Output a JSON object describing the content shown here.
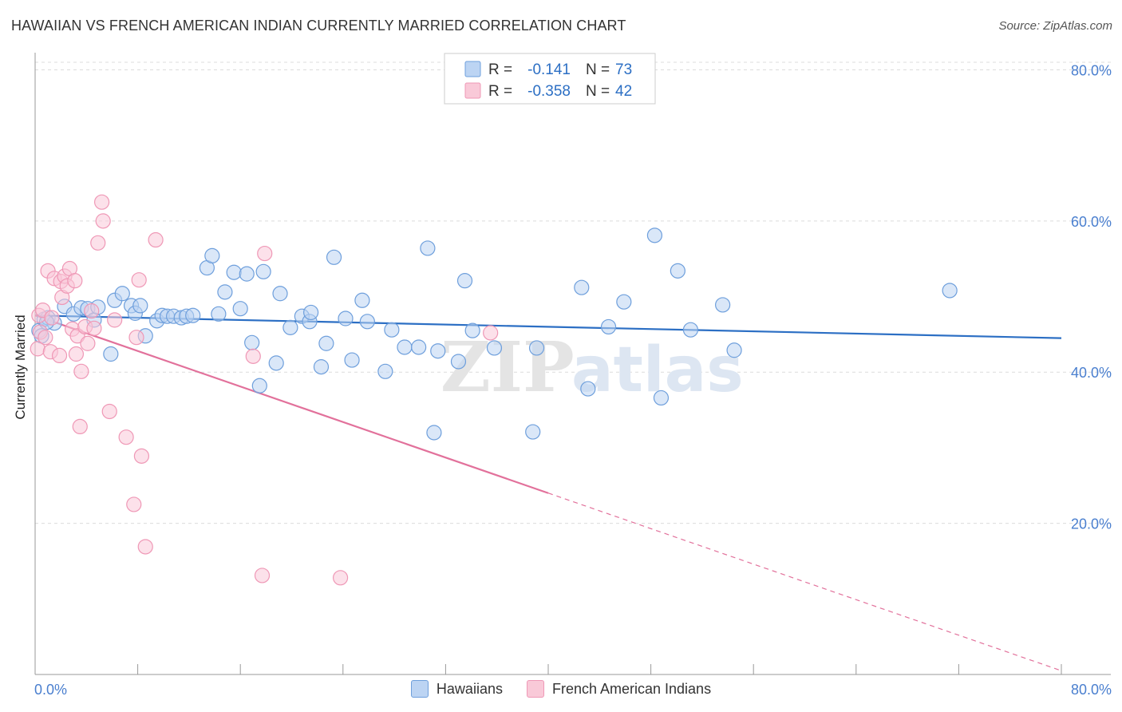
{
  "chart_data": {
    "type": "scatter",
    "title": "HAWAIIAN VS FRENCH AMERICAN INDIAN CURRENTLY MARRIED CORRELATION CHART",
    "source": "Source: ZipAtlas.com",
    "xlabel": "",
    "ylabel": "Currently Married",
    "xlim": [
      0,
      80
    ],
    "ylim": [
      0,
      81
    ],
    "x_tick_labels": [
      "0.0%",
      "80.0%"
    ],
    "y_ticks": [
      {
        "value": 20,
        "label": "20.0%"
      },
      {
        "value": 40,
        "label": "40.0%"
      },
      {
        "value": 60,
        "label": "60.0%"
      },
      {
        "value": 80,
        "label": "80.0%"
      }
    ],
    "grid": true,
    "watermark": "ZIPatlas",
    "legend": {
      "placement": "top-center",
      "entries": [
        {
          "r_label": "R =",
          "r_value": "-0.141",
          "n_label": "N =",
          "n_value": "73"
        },
        {
          "r_label": "R =",
          "r_value": "-0.358",
          "n_label": "N =",
          "n_value": "42"
        }
      ]
    },
    "series": [
      {
        "name": "Hawaiians",
        "color": "#6e9fdc",
        "fill": "#bcd4f3",
        "trend_color": "#2c6fc4",
        "trend": {
          "x0": 0,
          "y0": 47.5,
          "x1": 80,
          "y1": 44.5
        },
        "points": [
          [
            0.3,
            45.5
          ],
          [
            0.5,
            44.8
          ],
          [
            0.7,
            47.0
          ],
          [
            1.0,
            47.2
          ],
          [
            1.5,
            46.5
          ],
          [
            2.3,
            48.7
          ],
          [
            3.0,
            47.7
          ],
          [
            3.6,
            48.5
          ],
          [
            4.1,
            48.4
          ],
          [
            4.6,
            46.9
          ],
          [
            4.9,
            48.6
          ],
          [
            5.9,
            42.4
          ],
          [
            6.2,
            49.5
          ],
          [
            6.8,
            50.4
          ],
          [
            7.5,
            48.8
          ],
          [
            7.8,
            47.8
          ],
          [
            8.2,
            48.8
          ],
          [
            8.6,
            44.8
          ],
          [
            9.5,
            46.8
          ],
          [
            9.9,
            47.5
          ],
          [
            10.3,
            47.4
          ],
          [
            10.8,
            47.4
          ],
          [
            11.4,
            47.2
          ],
          [
            11.8,
            47.4
          ],
          [
            12.3,
            47.5
          ],
          [
            13.4,
            53.8
          ],
          [
            13.8,
            55.4
          ],
          [
            14.3,
            47.7
          ],
          [
            14.8,
            50.6
          ],
          [
            15.5,
            53.2
          ],
          [
            16.0,
            48.4
          ],
          [
            16.5,
            53.0
          ],
          [
            16.9,
            43.9
          ],
          [
            17.5,
            38.2
          ],
          [
            17.8,
            53.3
          ],
          [
            18.8,
            41.2
          ],
          [
            19.1,
            50.4
          ],
          [
            19.9,
            45.9
          ],
          [
            20.8,
            47.4
          ],
          [
            21.4,
            46.7
          ],
          [
            21.5,
            47.9
          ],
          [
            22.3,
            40.7
          ],
          [
            22.7,
            43.8
          ],
          [
            23.3,
            55.2
          ],
          [
            24.2,
            47.1
          ],
          [
            24.7,
            41.6
          ],
          [
            25.5,
            49.5
          ],
          [
            25.9,
            46.7
          ],
          [
            27.3,
            40.1
          ],
          [
            27.8,
            45.6
          ],
          [
            28.8,
            43.3
          ],
          [
            29.9,
            43.3
          ],
          [
            30.6,
            56.4
          ],
          [
            31.4,
            42.8
          ],
          [
            31.1,
            32.0
          ],
          [
            33.0,
            41.4
          ],
          [
            33.5,
            52.1
          ],
          [
            34.1,
            45.5
          ],
          [
            35.8,
            43.2
          ],
          [
            38.8,
            32.1
          ],
          [
            39.1,
            43.2
          ],
          [
            42.6,
            51.2
          ],
          [
            43.1,
            37.8
          ],
          [
            44.7,
            46.0
          ],
          [
            45.9,
            49.3
          ],
          [
            48.3,
            58.1
          ],
          [
            48.8,
            36.6
          ],
          [
            50.1,
            53.4
          ],
          [
            51.1,
            45.6
          ],
          [
            53.6,
            48.9
          ],
          [
            54.5,
            42.9
          ],
          [
            71.3,
            50.8
          ],
          [
            0.9,
            46.6
          ]
        ]
      },
      {
        "name": "French American Indians",
        "color": "#ef98b6",
        "fill": "#f9c9d8",
        "trend_color": "#e2719b",
        "trend": {
          "x0": 0,
          "y0": 47.5,
          "x1": 40,
          "y1": 24.0
        },
        "trend_dashed": {
          "x0": 40,
          "y0": 24.0,
          "x1": 80,
          "y1": 0.5
        },
        "points": [
          [
            0.2,
            43.1
          ],
          [
            0.3,
            47.5
          ],
          [
            0.4,
            45.3
          ],
          [
            0.6,
            48.2
          ],
          [
            0.8,
            44.6
          ],
          [
            1.0,
            53.4
          ],
          [
            1.2,
            42.7
          ],
          [
            1.3,
            47.2
          ],
          [
            1.5,
            52.4
          ],
          [
            1.9,
            42.2
          ],
          [
            2.0,
            52.0
          ],
          [
            2.1,
            49.9
          ],
          [
            2.3,
            52.7
          ],
          [
            2.5,
            51.4
          ],
          [
            2.7,
            53.7
          ],
          [
            2.9,
            45.7
          ],
          [
            3.1,
            52.1
          ],
          [
            3.2,
            42.4
          ],
          [
            3.3,
            44.8
          ],
          [
            3.5,
            32.8
          ],
          [
            3.6,
            40.1
          ],
          [
            3.9,
            46.0
          ],
          [
            4.1,
            43.8
          ],
          [
            4.4,
            48.1
          ],
          [
            4.6,
            45.8
          ],
          [
            4.9,
            57.1
          ],
          [
            5.2,
            62.5
          ],
          [
            5.3,
            60.0
          ],
          [
            5.8,
            34.8
          ],
          [
            6.2,
            46.9
          ],
          [
            7.1,
            31.4
          ],
          [
            7.7,
            22.5
          ],
          [
            7.9,
            44.6
          ],
          [
            8.1,
            52.2
          ],
          [
            8.3,
            28.9
          ],
          [
            8.6,
            16.9
          ],
          [
            9.4,
            57.5
          ],
          [
            17.0,
            42.1
          ],
          [
            17.7,
            13.1
          ],
          [
            17.9,
            55.7
          ],
          [
            23.8,
            12.8
          ],
          [
            35.5,
            45.2
          ]
        ]
      }
    ]
  }
}
